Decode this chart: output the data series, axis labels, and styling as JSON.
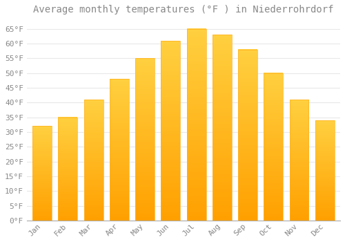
{
  "title": "Average monthly temperatures (°F ) in Niederrohrdorf",
  "months": [
    "Jan",
    "Feb",
    "Mar",
    "Apr",
    "May",
    "Jun",
    "Jul",
    "Aug",
    "Sep",
    "Oct",
    "Nov",
    "Dec"
  ],
  "values": [
    32,
    35,
    41,
    48,
    55,
    61,
    65,
    63,
    58,
    50,
    41,
    34
  ],
  "bar_color_top": "#FFD040",
  "bar_color_bottom": "#FFA000",
  "background_color": "#FFFFFF",
  "plot_bg_color": "#FFFFFF",
  "grid_color": "#E8E8E8",
  "text_color": "#888888",
  "title_color": "#888888",
  "ylim": [
    0,
    68
  ],
  "yticks": [
    0,
    5,
    10,
    15,
    20,
    25,
    30,
    35,
    40,
    45,
    50,
    55,
    60,
    65
  ],
  "ytick_labels": [
    "0°F",
    "5°F",
    "10°F",
    "15°F",
    "20°F",
    "25°F",
    "30°F",
    "35°F",
    "40°F",
    "45°F",
    "50°F",
    "55°F",
    "60°F",
    "65°F"
  ],
  "title_fontsize": 10,
  "tick_fontsize": 8,
  "font_family": "monospace",
  "bar_width": 0.75
}
